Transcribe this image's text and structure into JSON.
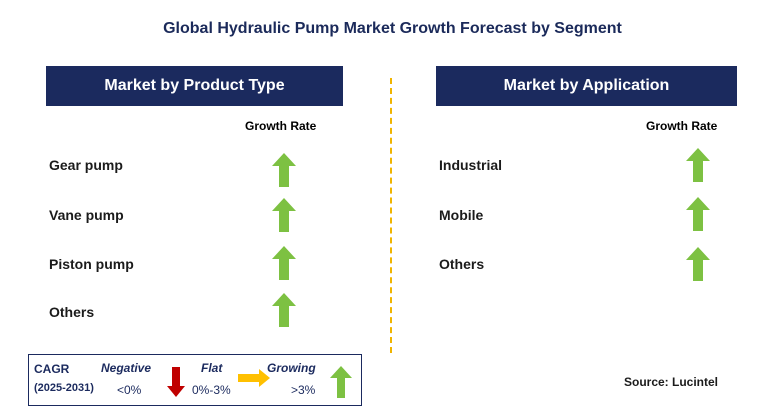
{
  "title": "Global Hydraulic Pump Market Growth Forecast by Segment",
  "panels": [
    {
      "header": "Market by Product Type",
      "growth_label": "Growth Rate",
      "rows": [
        {
          "label": "Gear pump",
          "trend": "growing"
        },
        {
          "label": "Vane pump",
          "trend": "growing"
        },
        {
          "label": "Piston pump",
          "trend": "growing"
        },
        {
          "label": "Others",
          "trend": "growing"
        }
      ]
    },
    {
      "header": "Market by Application",
      "growth_label": "Growth Rate",
      "rows": [
        {
          "label": "Industrial",
          "trend": "growing"
        },
        {
          "label": "Mobile",
          "trend": "growing"
        },
        {
          "label": "Others",
          "trend": "growing"
        }
      ]
    }
  ],
  "legend": {
    "cagr": "CAGR",
    "period": "(2025-2031)",
    "negative": {
      "label": "Negative",
      "range": "<0%",
      "color": "#c00000"
    },
    "flat": {
      "label": "Flat",
      "range": "0%-3%",
      "color": "#ffc000"
    },
    "growing": {
      "label": "Growing",
      "range": ">3%",
      "color": "#7dc142"
    }
  },
  "source": "Source: Lucintel",
  "colors": {
    "header_bg": "#1b2a5e",
    "divider": "#f0b400",
    "up_arrow": "#7dc142"
  }
}
